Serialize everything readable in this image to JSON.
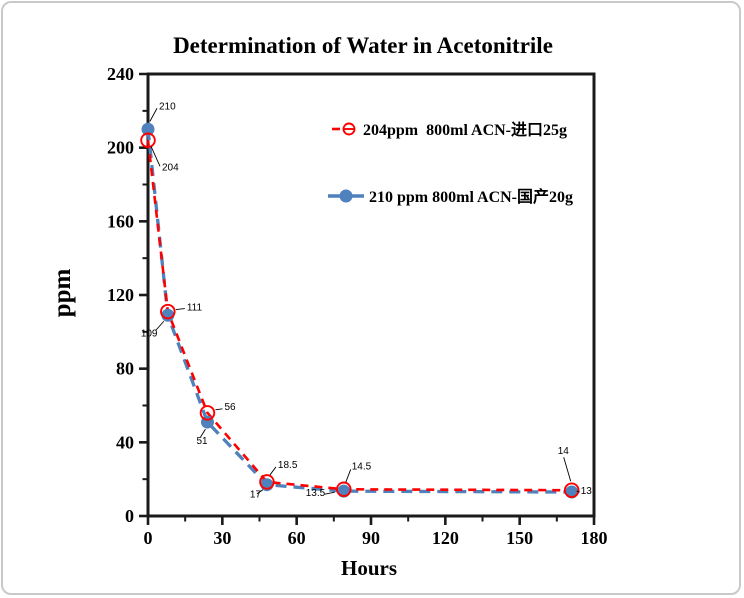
{
  "chart_data": {
    "type": "line",
    "title": "Determination of Water in Acetonitrile",
    "xlabel": "Hours",
    "ylabel": "ppm",
    "xlim": [
      0,
      180
    ],
    "ylim": [
      0,
      240
    ],
    "x_major_ticks": [
      0,
      30,
      60,
      90,
      120,
      150,
      180
    ],
    "y_major_ticks": [
      0,
      40,
      80,
      120,
      160,
      200,
      240
    ],
    "x_minor_step": 15,
    "y_minor_step": 20,
    "grid": false,
    "legend_position": "upper-right-inside",
    "axis_color": "#1a1a1a",
    "series": [
      {
        "name": "204ppm  800ml ACN-进口25g",
        "color": "#ff0000",
        "marker": "open-circle",
        "line_style": "dashed",
        "x": [
          0,
          8,
          24,
          48,
          79,
          171
        ],
        "values": [
          204,
          111,
          56,
          18.5,
          14.5,
          14
        ],
        "point_labels": [
          "204",
          "111",
          "56",
          "18.5",
          "14.5",
          "14"
        ]
      },
      {
        "name": "210 ppm 800ml ACN-国产20g",
        "color": "#4f81bd",
        "marker": "filled-circle",
        "line_style": "dashed",
        "x": [
          0,
          8,
          24,
          48,
          79,
          171
        ],
        "values": [
          210,
          109,
          51,
          17,
          13.5,
          13
        ],
        "point_labels": [
          "210",
          "109",
          "51",
          "17",
          "13.5",
          "13"
        ]
      }
    ]
  }
}
